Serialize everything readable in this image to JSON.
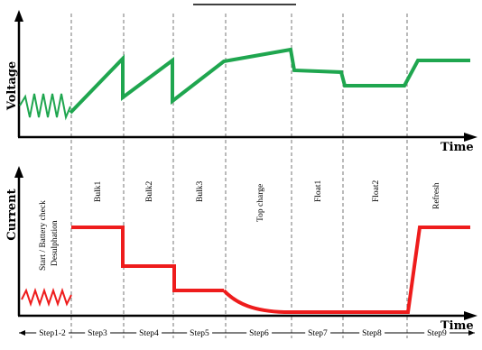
{
  "axes": {
    "top": {
      "ylabel": "Voltage",
      "xlabel": "Time"
    },
    "bottom": {
      "ylabel": "Current",
      "xlabel": "Time"
    }
  },
  "phases": [
    {
      "id": "p1",
      "lines": [
        "Start / Battery check",
        "Desulphation"
      ]
    },
    {
      "id": "p2",
      "lines": [
        "Bulk1"
      ]
    },
    {
      "id": "p3",
      "lines": [
        "Bulk2"
      ]
    },
    {
      "id": "p4",
      "lines": [
        "Bulk3"
      ]
    },
    {
      "id": "p5",
      "lines": [
        "Top charge"
      ]
    },
    {
      "id": "p6",
      "lines": [
        "Float1"
      ]
    },
    {
      "id": "p7",
      "lines": [
        "Float2"
      ]
    },
    {
      "id": "p8",
      "lines": [
        "Refresh"
      ]
    }
  ],
  "steps": [
    "Step1-2",
    "Step3",
    "Step4",
    "Step5",
    "Step6",
    "Step7",
    "Step8",
    "Step9"
  ],
  "colors": {
    "voltage": "#1fa64f",
    "current": "#ee1c1c",
    "axis": "#000000"
  }
}
